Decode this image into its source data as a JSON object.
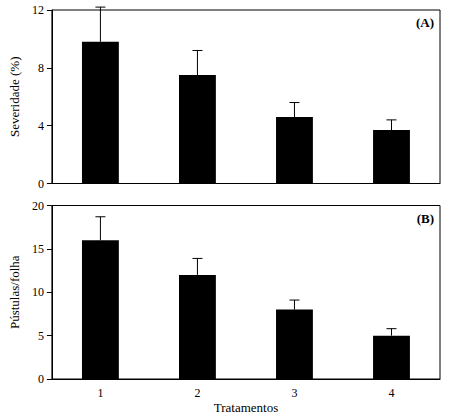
{
  "chart_data": [
    {
      "type": "bar",
      "annotation": "(A)",
      "ylabel": "Severidade (%)",
      "categories": [
        "1",
        "2",
        "3",
        "4"
      ],
      "values": [
        9.8,
        7.5,
        4.6,
        3.7
      ],
      "errors": [
        2.4,
        1.7,
        1.0,
        0.7
      ],
      "color": "#000000",
      "ylim": [
        0,
        12
      ],
      "yticks": [
        0,
        4,
        8,
        12
      ],
      "grid": false,
      "tick_labels": "y"
    },
    {
      "type": "bar",
      "annotation": "(B)",
      "ylabel": "Pústulas/folha",
      "xlabel": "Tratamentos",
      "categories": [
        "1",
        "2",
        "3",
        "4"
      ],
      "values": [
        16,
        12,
        8,
        5
      ],
      "errors": [
        2.7,
        1.9,
        1.1,
        0.8
      ],
      "color": "#000000",
      "ylim": [
        0,
        20
      ],
      "yticks": [
        0,
        5,
        10,
        15,
        20
      ],
      "grid": false
    }
  ]
}
